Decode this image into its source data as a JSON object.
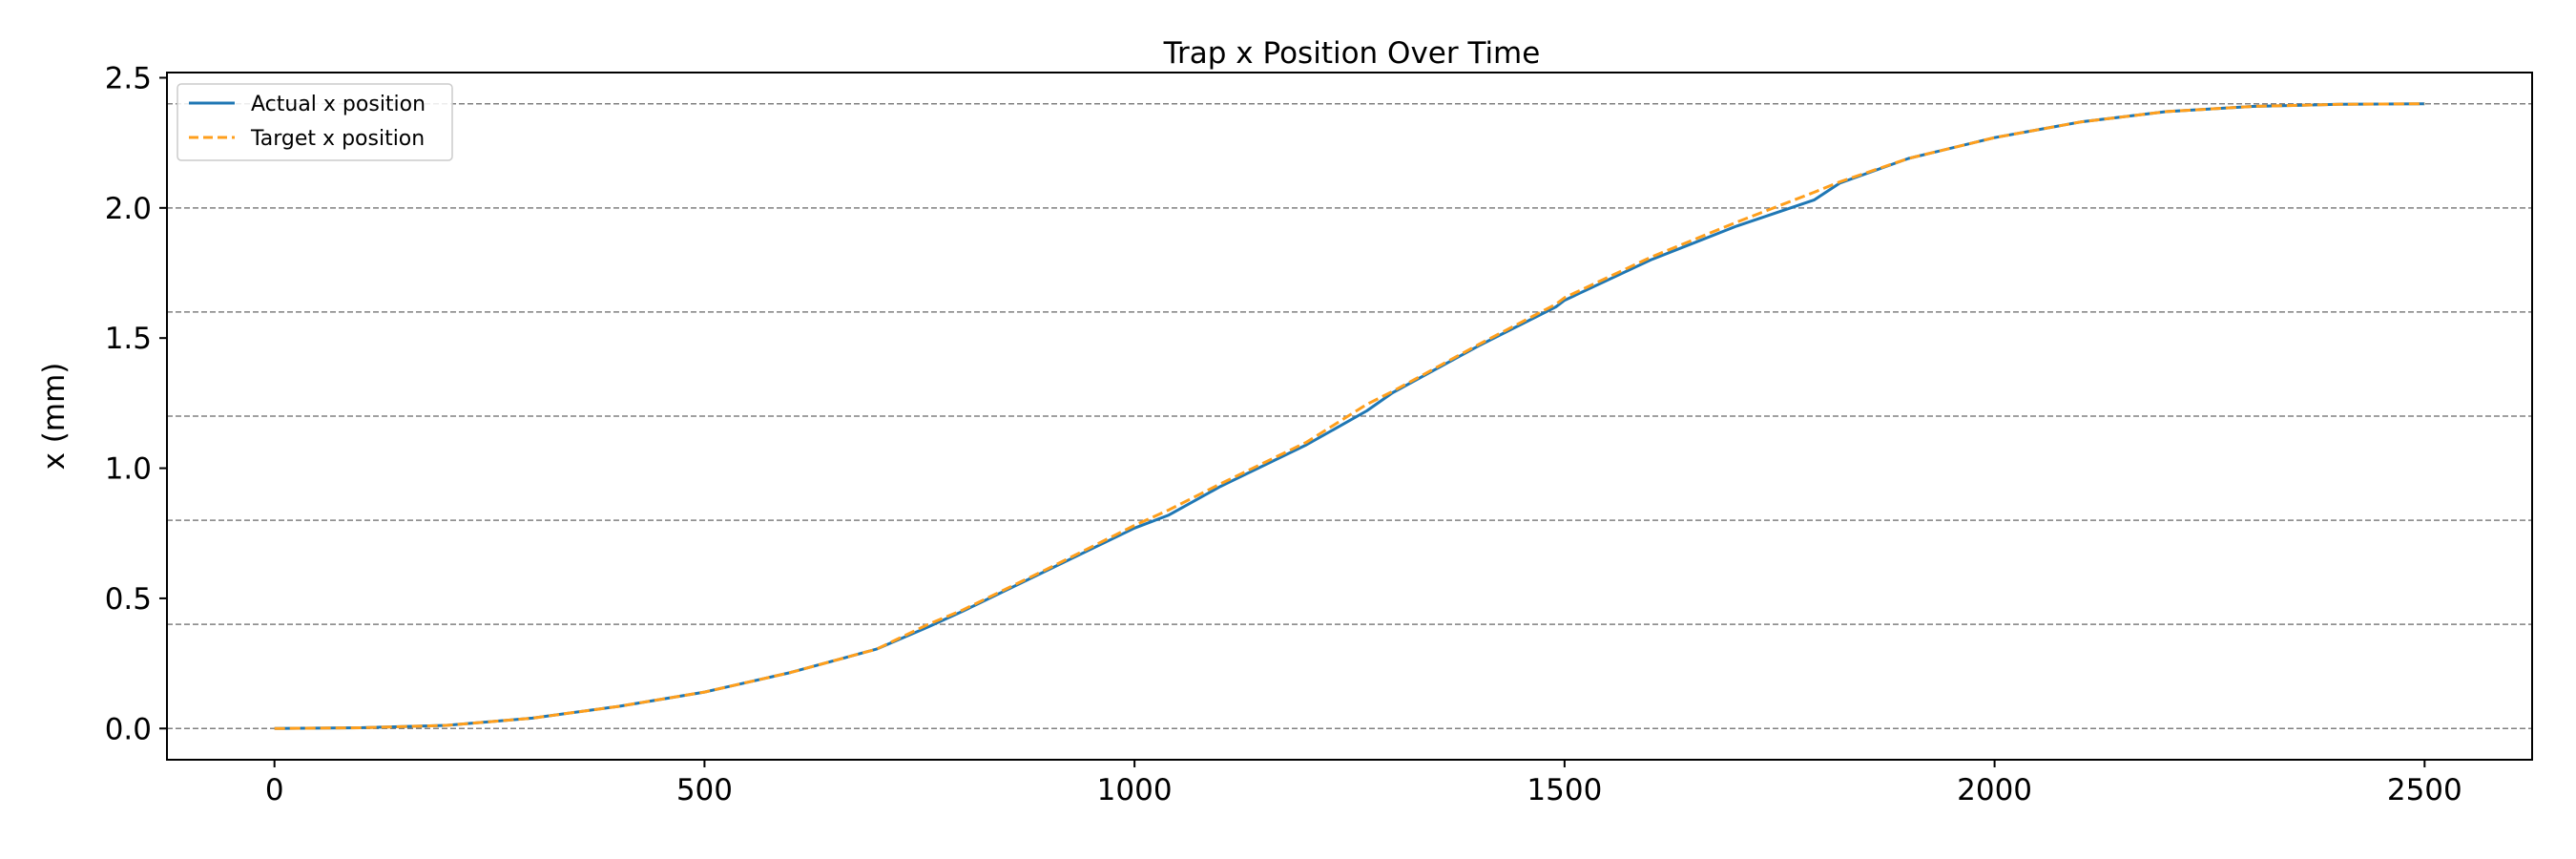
{
  "chart_data": {
    "type": "line",
    "title": "Trap x Position Over Time",
    "xlabel": "",
    "ylabel": "x (mm)",
    "xlim": [
      -125,
      2625
    ],
    "ylim": [
      -0.12,
      2.52
    ],
    "xticks": [
      0,
      500,
      1000,
      1500,
      2000,
      2500
    ],
    "yticks": [
      0.0,
      0.5,
      1.0,
      1.5,
      2.0,
      2.5
    ],
    "xtick_labels": [
      "0",
      "500",
      "1000",
      "1500",
      "2000",
      "2500"
    ],
    "ytick_labels": [
      "0.0",
      "0.5",
      "1.0",
      "1.5",
      "2.0",
      "2.5"
    ],
    "hlines": [
      0.0,
      0.4,
      0.8,
      1.2,
      1.6,
      2.0,
      2.4
    ],
    "grid": false,
    "legend_position": "top-left",
    "colors": {
      "actual": "#1f77b4",
      "target": "#ff9f1c",
      "hline": "#808080"
    },
    "series": [
      {
        "name": "Actual x position",
        "style": "solid",
        "x": [
          0,
          100,
          200,
          300,
          400,
          500,
          600,
          700,
          760,
          800,
          900,
          1000,
          1040,
          1100,
          1200,
          1270,
          1300,
          1400,
          1490,
          1500,
          1600,
          1700,
          1790,
          1820,
          1900,
          2000,
          2100,
          2200,
          2300,
          2400,
          2500
        ],
        "y": [
          0.0,
          0.003,
          0.012,
          0.04,
          0.085,
          0.14,
          0.215,
          0.305,
          0.39,
          0.45,
          0.61,
          0.77,
          0.82,
          0.93,
          1.09,
          1.22,
          1.29,
          1.47,
          1.62,
          1.645,
          1.8,
          1.93,
          2.03,
          2.095,
          2.19,
          2.27,
          2.33,
          2.37,
          2.39,
          2.398,
          2.4
        ]
      },
      {
        "name": "Target x position",
        "style": "dashed",
        "x": [
          0,
          100,
          200,
          300,
          400,
          500,
          600,
          700,
          760,
          800,
          900,
          1000,
          1040,
          1100,
          1200,
          1270,
          1300,
          1400,
          1490,
          1500,
          1600,
          1700,
          1790,
          1820,
          1900,
          2000,
          2100,
          2200,
          2300,
          2400,
          2500
        ],
        "y": [
          0.0,
          0.003,
          0.012,
          0.04,
          0.085,
          0.14,
          0.215,
          0.305,
          0.4,
          0.455,
          0.615,
          0.78,
          0.84,
          0.94,
          1.1,
          1.245,
          1.295,
          1.475,
          1.63,
          1.655,
          1.81,
          1.945,
          2.06,
          2.1,
          2.19,
          2.27,
          2.33,
          2.37,
          2.39,
          2.398,
          2.4
        ]
      }
    ]
  }
}
